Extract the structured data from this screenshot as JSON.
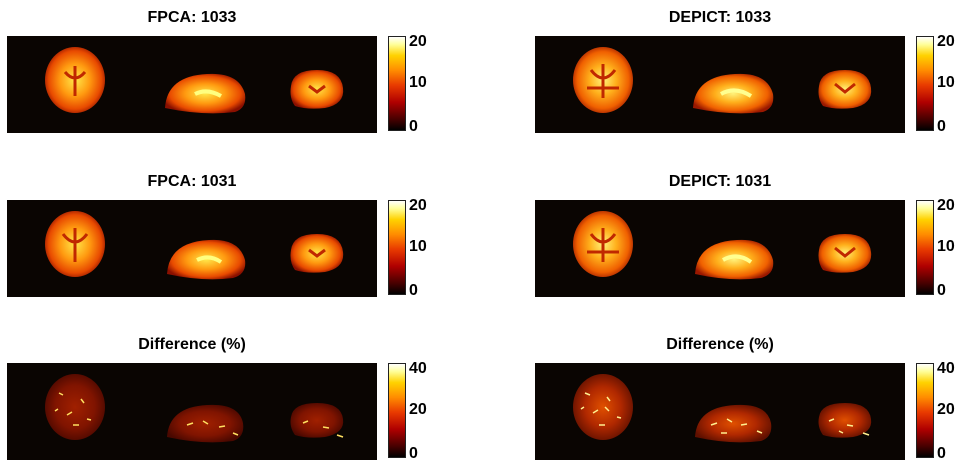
{
  "panels": [
    {
      "title": "FPCA: 1033",
      "ticks": [
        "20",
        "10",
        "0"
      ]
    },
    {
      "title": "DEPICT: 1033",
      "ticks": [
        "20",
        "10",
        "0"
      ]
    },
    {
      "title": "FPCA: 1031",
      "ticks": [
        "20",
        "10",
        "0"
      ]
    },
    {
      "title": "DEPICT: 1031",
      "ticks": [
        "20",
        "10",
        "0"
      ]
    },
    {
      "title": "Difference (%)",
      "ticks": [
        "40",
        "20",
        "0"
      ]
    },
    {
      "title": "Difference (%)",
      "ticks": [
        "40",
        "20",
        "0"
      ]
    }
  ],
  "colors": {
    "background": "#0a0502",
    "colormap": "hot"
  }
}
